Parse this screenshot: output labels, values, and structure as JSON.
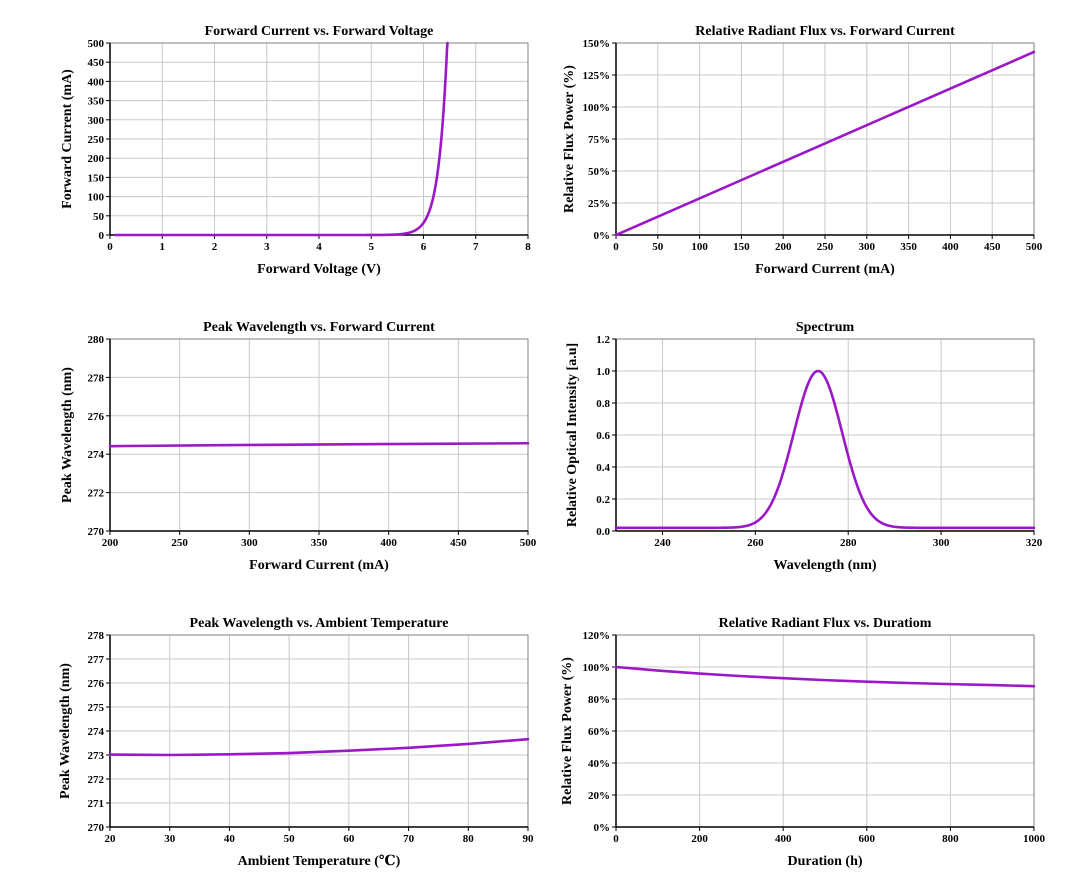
{
  "style": {
    "line_color": "#9b17c8",
    "grid_color": "#c8c8c8",
    "axis_color": "#000000"
  },
  "chart_data": [
    {
      "type": "line",
      "title": "Forward Current vs. Forward Voltage",
      "xlabel": "Forward Voltage (V)",
      "ylabel": "Forward Current (mA)",
      "xlim": [
        0,
        8
      ],
      "ylim": [
        0,
        500
      ],
      "xticks": [
        0,
        1,
        2,
        3,
        4,
        5,
        6,
        7,
        8
      ],
      "yticks": [
        0,
        50,
        100,
        150,
        200,
        250,
        300,
        350,
        400,
        450,
        500
      ],
      "xtick_labels": [
        "0",
        "1",
        "2",
        "3",
        "4",
        "5",
        "6",
        "7",
        "8"
      ],
      "ytick_labels": [
        "0",
        "50",
        "100",
        "150",
        "200",
        "250",
        "300",
        "350",
        "400",
        "450",
        "500"
      ],
      "grid": true,
      "series": [
        {
          "x": [
            0.1,
            1,
            2,
            3,
            4,
            5,
            5.5,
            5.7,
            5.8,
            5.9,
            6.0,
            6.1,
            6.2,
            6.3,
            6.4,
            6.46
          ],
          "y": [
            0,
            0,
            0,
            0,
            0,
            0,
            0.5,
            2,
            4,
            10,
            22,
            50,
            100,
            180,
            320,
            500
          ]
        }
      ]
    },
    {
      "type": "line",
      "title": "Relative Radiant Flux vs. Forward Current",
      "xlabel": "Forward Current (mA)",
      "ylabel": "Relative Flux Power (%)",
      "xlim": [
        0,
        500
      ],
      "ylim": [
        0,
        150
      ],
      "xticks": [
        0,
        50,
        100,
        150,
        200,
        250,
        300,
        350,
        400,
        450,
        500
      ],
      "yticks": [
        0,
        25,
        50,
        75,
        100,
        125,
        150
      ],
      "xtick_labels": [
        "0",
        "50",
        "100",
        "150",
        "200",
        "250",
        "300",
        "350",
        "400",
        "450",
        "500"
      ],
      "ytick_labels": [
        "0%",
        "25%",
        "50%",
        "75%",
        "100%",
        "125%",
        "150%"
      ],
      "grid": true,
      "series": [
        {
          "x": [
            0,
            500
          ],
          "y": [
            0,
            143
          ]
        }
      ]
    },
    {
      "type": "line",
      "title": "Peak Wavelength vs. Forward Current",
      "xlabel": "Forward Current (mA)",
      "ylabel": "Peak Wavelength (nm)",
      "xlim": [
        200,
        500
      ],
      "ylim": [
        270,
        280
      ],
      "xticks": [
        200,
        250,
        300,
        350,
        400,
        450,
        500
      ],
      "yticks": [
        270,
        272,
        274,
        276,
        278,
        280
      ],
      "xtick_labels": [
        "200",
        "250",
        "300",
        "350",
        "400",
        "450",
        "500"
      ],
      "ytick_labels": [
        "270",
        "272",
        "274",
        "276",
        "278",
        "280"
      ],
      "grid": true,
      "series": [
        {
          "x": [
            200,
            300,
            400,
            500
          ],
          "y": [
            274.42,
            274.48,
            274.53,
            274.57
          ]
        }
      ]
    },
    {
      "type": "line",
      "title": "Spectrum",
      "xlabel": "Wavelength (nm)",
      "ylabel": "Relative Optical Intensity [a.u]",
      "xlim": [
        230,
        320
      ],
      "ylim": [
        0,
        1.2
      ],
      "xticks": [
        240,
        260,
        280,
        300,
        320
      ],
      "yticks": [
        0,
        0.2,
        0.4,
        0.6,
        0.8,
        1.0,
        1.2
      ],
      "xtick_labels": [
        "240",
        "260",
        "280",
        "300",
        "320"
      ],
      "ytick_labels": [
        "0.0",
        "0.2",
        "0.4",
        "0.6",
        "0.8",
        "1.0",
        "1.2"
      ],
      "grid": true,
      "series": [
        {
          "x": [
            230,
            255,
            258,
            260,
            262,
            264,
            266,
            268,
            270,
            272,
            273.5,
            275,
            277,
            279,
            281,
            283,
            285,
            287,
            290,
            295,
            320
          ],
          "y": [
            0.02,
            0.02,
            0.03,
            0.05,
            0.1,
            0.19,
            0.32,
            0.5,
            0.72,
            0.92,
            1.0,
            0.96,
            0.8,
            0.58,
            0.37,
            0.2,
            0.09,
            0.04,
            0.02,
            0.02,
            0.02
          ]
        }
      ]
    },
    {
      "type": "line",
      "title": "Peak Wavelength vs. Ambient Temperature",
      "xlabel": "Ambient Temperature (℃)",
      "ylabel": "Peak Wavelength (nm)",
      "xlim": [
        20,
        90
      ],
      "ylim": [
        270,
        278
      ],
      "xticks": [
        20,
        30,
        40,
        50,
        60,
        70,
        80,
        90
      ],
      "yticks": [
        270,
        271,
        272,
        273,
        274,
        275,
        276,
        277,
        278
      ],
      "xtick_labels": [
        "20",
        "30",
        "40",
        "50",
        "60",
        "70",
        "80",
        "90"
      ],
      "ytick_labels": [
        "270",
        "271",
        "272",
        "273",
        "274",
        "275",
        "276",
        "277",
        "278"
      ],
      "grid": true,
      "series": [
        {
          "x": [
            20,
            30,
            40,
            50,
            60,
            70,
            80,
            90
          ],
          "y": [
            273.02,
            273.0,
            273.03,
            273.08,
            273.18,
            273.3,
            273.46,
            273.66
          ]
        }
      ]
    },
    {
      "type": "line",
      "title": "Relative Radiant Flux vs. Duratiom",
      "xlabel": "Duration (h)",
      "ylabel": "Relative Flux Power (%)",
      "xlim": [
        0,
        1000
      ],
      "ylim": [
        0,
        120
      ],
      "xticks": [
        0,
        200,
        400,
        600,
        800,
        1000
      ],
      "yticks": [
        0,
        20,
        40,
        60,
        80,
        100,
        120
      ],
      "xtick_labels": [
        "0",
        "200",
        "400",
        "600",
        "800",
        "1000"
      ],
      "ytick_labels": [
        "0%",
        "20%",
        "40%",
        "60%",
        "80%",
        "100%",
        "120%"
      ],
      "grid": true,
      "series": [
        {
          "x": [
            0,
            100,
            200,
            300,
            400,
            500,
            600,
            700,
            800,
            900,
            1000
          ],
          "y": [
            100,
            97.8,
            95.9,
            94.3,
            93,
            91.8,
            90.8,
            90,
            89.3,
            88.7,
            88
          ]
        }
      ]
    }
  ]
}
